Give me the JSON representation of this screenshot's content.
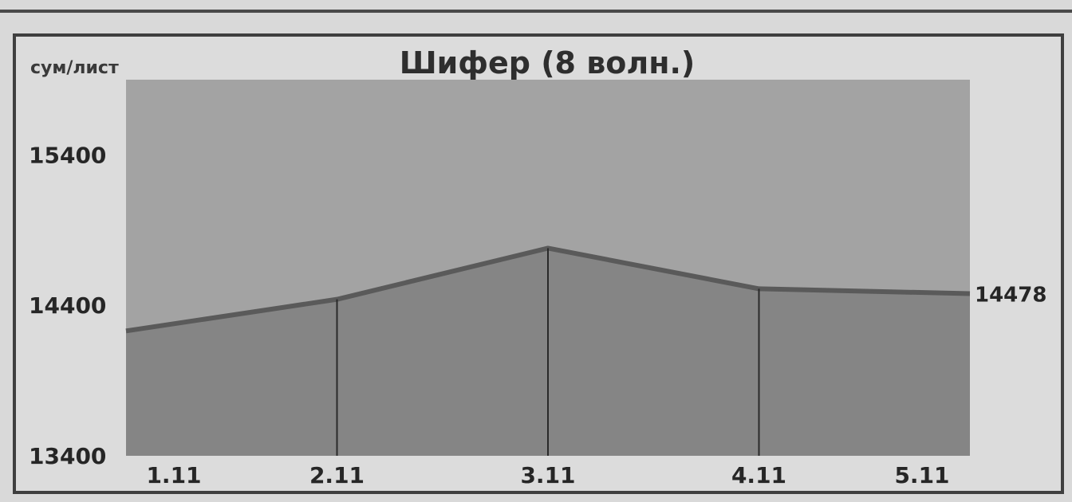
{
  "chart_data": {
    "type": "area",
    "title": "Шифер (8 волн.)",
    "ylabel": "сум/лист",
    "xlabel": "",
    "categories": [
      "1.11",
      "2.11",
      "3.11",
      "4.11",
      "5.11"
    ],
    "values": [
      14230,
      14440,
      14780,
      14510,
      14478
    ],
    "ylim": [
      13400,
      15900
    ],
    "yticks": [
      13400,
      14400,
      15400
    ],
    "data_labels": [
      {
        "index": 4,
        "text": "14478"
      }
    ],
    "grid": false,
    "colors": {
      "plot_background": "#a3a3a3",
      "area_fill": "#858585",
      "area_line": "#5a5a5a",
      "divider": "#2a2a2a"
    }
  }
}
